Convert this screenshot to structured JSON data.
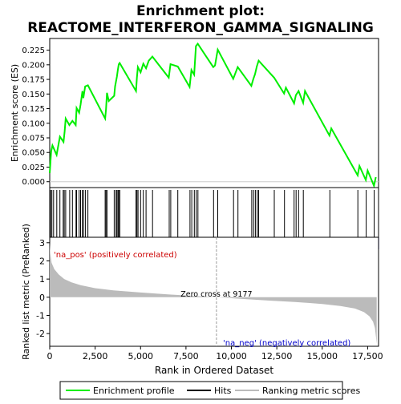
{
  "chart_data": {
    "type": "line",
    "title": "Enrichment plot:",
    "subtitle": "REACTOME_INTERFERON_GAMMA_SIGNALING",
    "top_panel": {
      "ylabel": "Enrichment score (ES)",
      "ylim": [
        -0.01,
        0.245
      ],
      "yticks": [
        0.0,
        0.025,
        0.05,
        0.075,
        0.1,
        0.125,
        0.15,
        0.175,
        0.2,
        0.225
      ],
      "ytick_labels": [
        "0.000",
        "0.025",
        "0.050",
        "0.075",
        "0.100",
        "0.125",
        "0.150",
        "0.175",
        "0.200",
        "0.225"
      ],
      "series": [
        {
          "name": "Enrichment profile",
          "color": "#00ee00",
          "x": [
            0,
            80,
            150,
            380,
            560,
            760,
            820,
            880,
            1080,
            1250,
            1430,
            1480,
            1620,
            1700,
            1800,
            1850,
            1950,
            2100,
            3050,
            3100,
            3150,
            3250,
            3550,
            3600,
            3700,
            3750,
            3800,
            3850,
            4750,
            4800,
            4850,
            5000,
            5150,
            5300,
            5450,
            5650,
            6550,
            6650,
            7050,
            7700,
            7800,
            7950,
            8050,
            8150,
            9000,
            9100,
            9250,
            10100,
            10350,
            11100,
            11200,
            11300,
            11400,
            11500,
            12350,
            12900,
            13000,
            13450,
            13550,
            13700,
            13950,
            14050,
            15400,
            15500,
            16950,
            17050,
            17400,
            17500,
            17850,
            17950
          ],
          "y": [
            0.015,
            0.052,
            0.062,
            0.046,
            0.077,
            0.068,
            0.086,
            0.108,
            0.097,
            0.104,
            0.097,
            0.126,
            0.118,
            0.132,
            0.155,
            0.143,
            0.163,
            0.165,
            0.108,
            0.124,
            0.152,
            0.138,
            0.147,
            0.163,
            0.18,
            0.191,
            0.201,
            0.203,
            0.155,
            0.178,
            0.196,
            0.187,
            0.202,
            0.194,
            0.207,
            0.214,
            0.178,
            0.201,
            0.197,
            0.162,
            0.191,
            0.183,
            0.232,
            0.236,
            0.196,
            0.199,
            0.226,
            0.176,
            0.196,
            0.164,
            0.175,
            0.184,
            0.197,
            0.207,
            0.178,
            0.151,
            0.161,
            0.134,
            0.148,
            0.155,
            0.135,
            0.155,
            0.079,
            0.091,
            0.011,
            0.027,
            0.003,
            0.019,
            -0.007,
            0.008
          ]
        }
      ]
    },
    "hits": {
      "name": "Hits",
      "x": [
        50,
        120,
        210,
        390,
        560,
        740,
        800,
        880,
        1100,
        1250,
        1450,
        1480,
        1620,
        1700,
        1800,
        1850,
        1960,
        2100,
        3050,
        3100,
        3150,
        3550,
        3650,
        3700,
        3760,
        3800,
        3860,
        4750,
        4800,
        4860,
        5000,
        5150,
        5300,
        5660,
        6580,
        6660,
        7050,
        7720,
        7820,
        7960,
        8060,
        8160,
        9020,
        9250,
        10120,
        10360,
        11120,
        11220,
        11320,
        11420,
        11500,
        12360,
        12920,
        13450,
        13560,
        13700,
        13960,
        15420,
        16960,
        17420,
        17860
      ]
    },
    "bottom_panel": {
      "ylabel": "Ranked list metric (PreRanked)",
      "xlabel": "Rank in Ordered Dataset",
      "ylim": [
        -2.7,
        3.3
      ],
      "yticks": [
        -2,
        -1,
        0,
        1,
        2,
        3
      ],
      "xlim": [
        0,
        18100
      ],
      "xticks": [
        0,
        2500,
        5000,
        7500,
        10000,
        12500,
        15000,
        17500
      ],
      "xtick_labels": [
        "0",
        "2,500",
        "5,000",
        "7,500",
        "10,000",
        "12,500",
        "15,000",
        "17,500"
      ],
      "metric_name": "Ranking metric scores",
      "metric_x": [
        0,
        30,
        100,
        250,
        500,
        800,
        1200,
        1700,
        2500,
        3500,
        5000,
        6500,
        8000,
        9177,
        10500,
        12000,
        13500,
        15000,
        16000,
        16800,
        17300,
        17600,
        17800,
        17900,
        17950,
        18000
      ],
      "metric_y": [
        3.0,
        2.4,
        1.9,
        1.55,
        1.25,
        1.0,
        0.82,
        0.66,
        0.5,
        0.38,
        0.26,
        0.16,
        0.07,
        0.0,
        -0.09,
        -0.18,
        -0.26,
        -0.37,
        -0.48,
        -0.62,
        -0.82,
        -1.05,
        -1.35,
        -1.7,
        -2.1,
        -2.55
      ],
      "zero_cross_label": "Zero cross at 9177",
      "zero_cross_x": 9177,
      "pos_label": "'na_pos' (positively correlated)",
      "neg_label": "'na_neg' (negatively correlated)",
      "pos_color": "#cc0000",
      "neg_color": "#0000cc"
    },
    "legend": {
      "placement": "bottom",
      "entries": [
        {
          "label": "Enrichment profile",
          "color": "#00ee00"
        },
        {
          "label": "Hits",
          "color": "#000000"
        },
        {
          "label": "Ranking metric scores",
          "color": "#bbbbbb"
        }
      ]
    }
  }
}
